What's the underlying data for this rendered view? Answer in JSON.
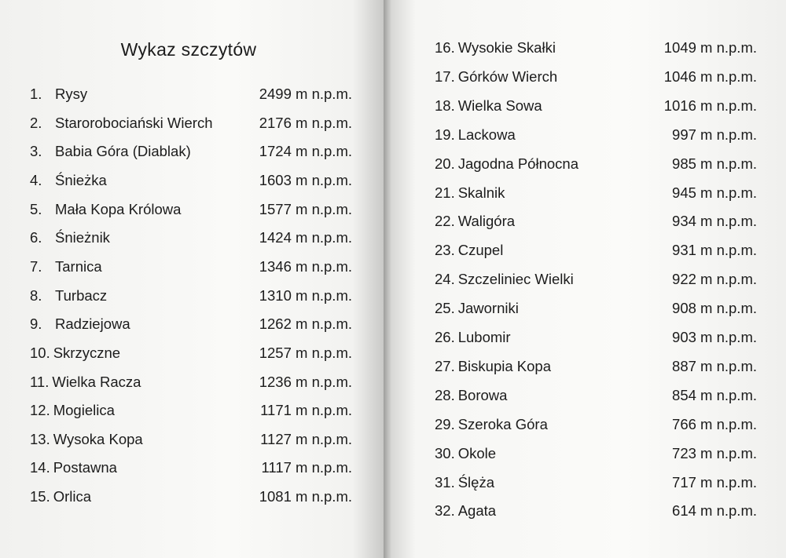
{
  "title": "Wykaz szczytów",
  "peaks": [
    {
      "num": "1.",
      "name": "Rysy",
      "height": "2499 m n.p.m."
    },
    {
      "num": "2.",
      "name": "Starorobociański Wierch",
      "height": "2176 m n.p.m."
    },
    {
      "num": "3.",
      "name": "Babia Góra (Diablak)",
      "height": "1724 m n.p.m."
    },
    {
      "num": "4.",
      "name": "Śnieżka",
      "height": "1603 m n.p.m."
    },
    {
      "num": "5.",
      "name": "Mała Kopa Królowa",
      "height": "1577 m n.p.m."
    },
    {
      "num": "6.",
      "name": "Śnieżnik",
      "height": "1424 m n.p.m."
    },
    {
      "num": "7.",
      "name": "Tarnica",
      "height": "1346 m n.p.m."
    },
    {
      "num": "8.",
      "name": "Turbacz",
      "height": "1310 m n.p.m."
    },
    {
      "num": "9.",
      "name": "Radziejowa",
      "height": "1262 m n.p.m."
    },
    {
      "num": "10.",
      "name": "Skrzyczne",
      "height": "1257 m n.p.m."
    },
    {
      "num": "11.",
      "name": "Wielka Racza",
      "height": "1236 m n.p.m."
    },
    {
      "num": "12.",
      "name": "Mogielica",
      "height": "1171 m n.p.m."
    },
    {
      "num": "13.",
      "name": "Wysoka Kopa",
      "height": "1127 m n.p.m."
    },
    {
      "num": "14.",
      "name": "Postawna",
      "height": "1117 m n.p.m."
    },
    {
      "num": "15.",
      "name": "Orlica",
      "height": "1081 m n.p.m."
    },
    {
      "num": "16.",
      "name": "Wysokie Skałki",
      "height": "1049 m n.p.m."
    },
    {
      "num": "17.",
      "name": "Górków Wierch",
      "height": "1046 m n.p.m."
    },
    {
      "num": "18.",
      "name": "Wielka Sowa",
      "height": "1016 m n.p.m."
    },
    {
      "num": "19.",
      "name": "Lackowa",
      "height": "997 m n.p.m."
    },
    {
      "num": "20.",
      "name": "Jagodna Północna",
      "height": "985 m n.p.m."
    },
    {
      "num": "21.",
      "name": "Skalnik",
      "height": "945 m n.p.m."
    },
    {
      "num": "22.",
      "name": "Waligóra",
      "height": "934 m n.p.m."
    },
    {
      "num": "23.",
      "name": "Czupel",
      "height": "931 m n.p.m."
    },
    {
      "num": "24.",
      "name": "Szczeliniec Wielki",
      "height": "922 m n.p.m."
    },
    {
      "num": "25.",
      "name": "Jaworniki",
      "height": "908 m n.p.m."
    },
    {
      "num": "26.",
      "name": "Lubomir",
      "height": "903 m n.p.m."
    },
    {
      "num": "27.",
      "name": "Biskupia Kopa",
      "height": "887 m n.p.m."
    },
    {
      "num": "28.",
      "name": "Borowa",
      "height": "854 m n.p.m."
    },
    {
      "num": "29.",
      "name": "Szeroka Góra",
      "height": "766 m n.p.m."
    },
    {
      "num": "30.",
      "name": "Okole",
      "height": "723 m n.p.m."
    },
    {
      "num": "31.",
      "name": "Ślęża",
      "height": "717 m n.p.m."
    },
    {
      "num": "32.",
      "name": "Agata",
      "height": "614 m n.p.m."
    }
  ]
}
